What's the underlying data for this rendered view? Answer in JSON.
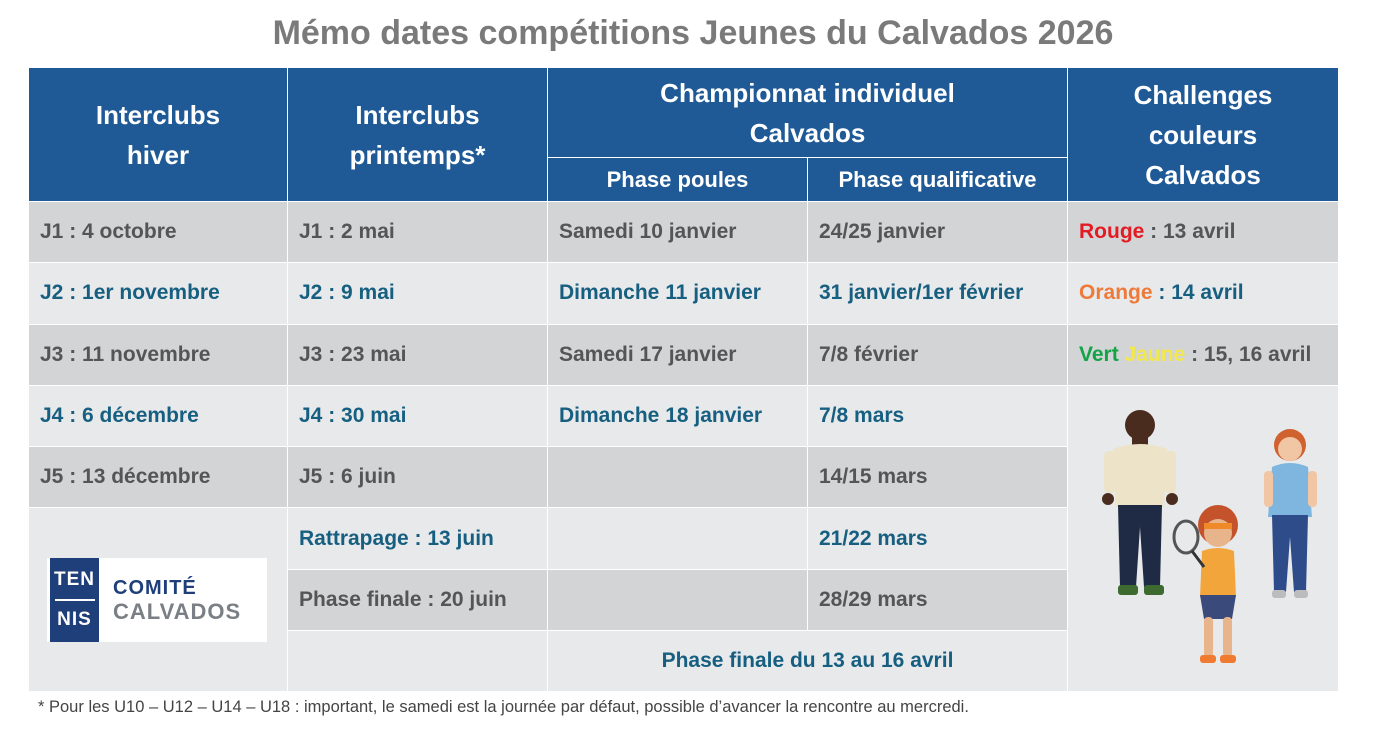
{
  "title": "Mémo dates compétitions Jeunes du Calvados 2026",
  "headers": {
    "interclubs_hiver": [
      "Interclubs",
      "hiver"
    ],
    "interclubs_printemps": [
      "Interclubs",
      "printemps*"
    ],
    "championnat": [
      "Championnat individuel",
      "Calvados"
    ],
    "challenges": [
      "Challenges",
      "couleurs",
      "Calvados"
    ],
    "phase_poules": "Phase poules",
    "phase_qualificative": "Phase qualificative"
  },
  "interclubs_hiver": [
    "J1 : 4 octobre",
    "J2 : 1er novembre",
    "J3 : 11 novembre",
    "J4 : 6 décembre",
    "J5 : 13 décembre"
  ],
  "interclubs_printemps": [
    "J1 : 2 mai",
    "J2 : 9 mai",
    "J3 : 23 mai",
    "J4 : 30 mai",
    "J5 : 6 juin",
    "Rattrapage : 13 juin",
    "Phase finale : 20 juin"
  ],
  "phase_poules": [
    "Samedi  10 janvier",
    "Dimanche  11 janvier",
    "Samedi  17 janvier",
    "Dimanche 18 janvier"
  ],
  "phase_qualificative": [
    "24/25 janvier",
    "31 janvier/1er février",
    "7/8 février",
    "7/8 mars",
    "14/15 mars",
    "21/22 mars",
    "28/29 mars"
  ],
  "phase_finale": "Phase finale du 13 au 16 avril",
  "challenges": {
    "rouge": {
      "label": "Rouge",
      "date": " : 13 avril"
    },
    "orange": {
      "label": "Orange",
      "date": " : 14 avril"
    },
    "vert": {
      "label": "Vert",
      "label2": "Jaune",
      "date": " : 15, 16 avril"
    }
  },
  "logo": {
    "box_line1": "TEN",
    "box_line2": "NIS",
    "line1": "COMITÉ",
    "line2": "CALVADOS"
  },
  "footnote": "* Pour les U10 – U12 – U14 – U18 : important, le samedi est la journée par défaut, possible d’avancer la rencontre au mercredi.",
  "colors": {
    "header_bg": "#1f5a96",
    "row_dark": "#d2d4d6",
    "row_light": "#e8e9eb",
    "text_grey": "#555555",
    "text_blue": "#175f80",
    "rouge": "#e31b23",
    "orange": "#ee7a3a",
    "vert": "#14a347",
    "jaune": "#f2e84b"
  }
}
